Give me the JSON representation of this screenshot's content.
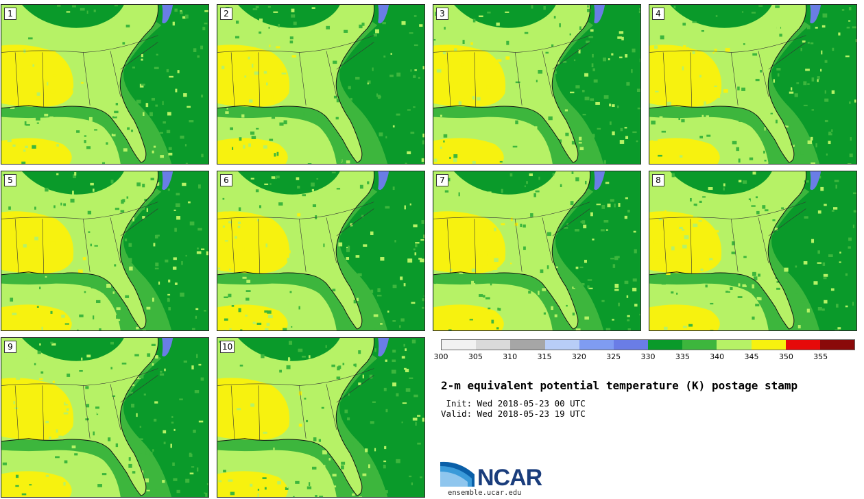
{
  "product": {
    "title": "2-m equivalent potential temperature (K) postage stamp",
    "init_line": " Init: Wed 2018-05-23 00 UTC",
    "valid_line": "Valid: Wed 2018-05-23 19 UTC"
  },
  "members": [
    "1",
    "2",
    "3",
    "4",
    "5",
    "6",
    "7",
    "8",
    "9",
    "10"
  ],
  "colorbar": {
    "colors": [
      "#f2f2f2",
      "#dadada",
      "#a6a6a6",
      "#b8cdf7",
      "#7f9cf2",
      "#6a7de6",
      "#0a9a2a",
      "#3db63d",
      "#b6f266",
      "#f7f20f",
      "#e60a0a",
      "#8a0a0a"
    ],
    "tick_labels": [
      "300",
      "305",
      "310",
      "315",
      "320",
      "325",
      "330",
      "335",
      "340",
      "345",
      "350",
      "355"
    ]
  },
  "logo": {
    "name": "NCAR",
    "url": "ensemble.ucar.edu"
  }
}
